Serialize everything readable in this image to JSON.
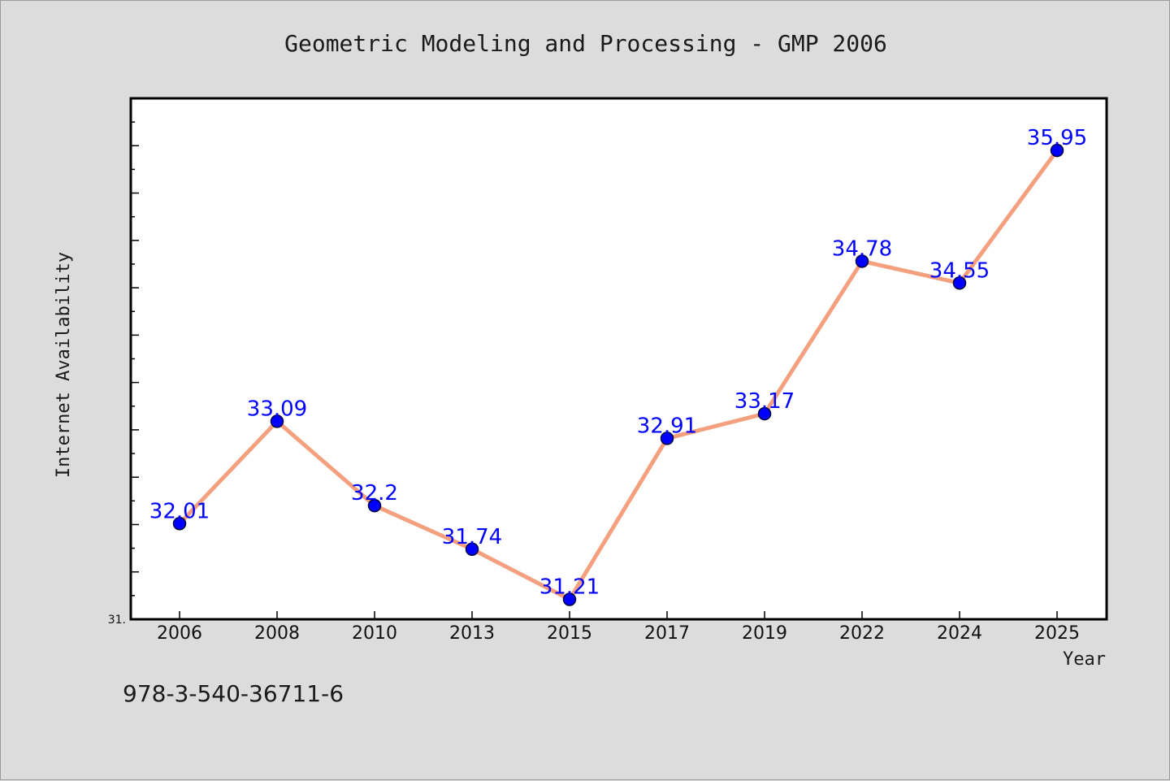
{
  "chart_data": {
    "type": "line",
    "title": "Geometric Modeling and Processing - GMP 2006",
    "xlabel": "Year",
    "ylabel": "Internet Availability",
    "categories": [
      "2006",
      "2008",
      "2010",
      "2013",
      "2015",
      "2017",
      "2019",
      "2022",
      "2024",
      "2025"
    ],
    "series": [
      {
        "values": [
          32.01,
          33.09,
          32.2,
          31.74,
          31.21,
          32.91,
          33.17,
          34.78,
          34.55,
          35.95
        ],
        "labels": [
          "32.01",
          "33.09",
          "32.2",
          "31.74",
          "31.21",
          "32.91",
          "33.17",
          "34.78",
          "34.55",
          "35.95"
        ],
        "line_color": "#f4a07e",
        "marker_color": "#0000ff"
      }
    ],
    "ylim": [
      31.0,
      36.5
    ],
    "y_tick_labels": [
      "31."
    ],
    "grid": false,
    "legend": "none"
  },
  "footnote": "978-3-540-36711-6",
  "colors": {
    "background": "#dcdcdc",
    "plot_background": "#ffffff",
    "data_label": "#0000ff"
  }
}
